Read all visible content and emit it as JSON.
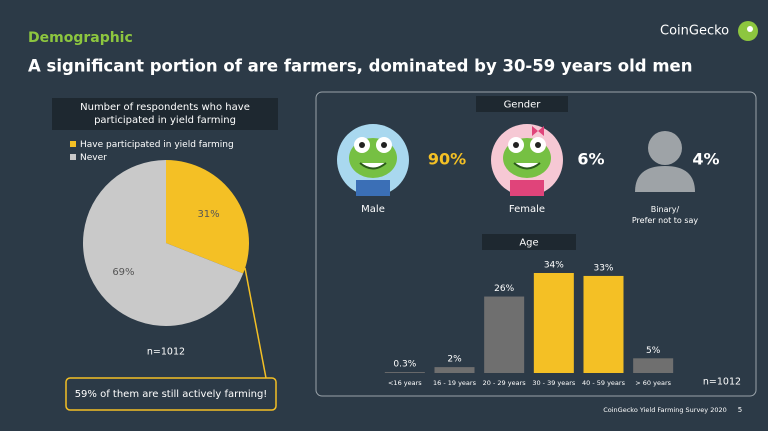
{
  "header": {
    "section": "Demographic",
    "title": "A significant portion of are farmers, dominated by 30-59 years old men",
    "brand": "CoinGecko"
  },
  "chart_data": [
    {
      "type": "pie",
      "title": "Number of respondents who have participated in yield farming",
      "categories": [
        "Have participated in yield farming",
        "Never"
      ],
      "values": [
        31,
        69
      ],
      "value_labels": [
        "31%",
        "69%"
      ],
      "colors": [
        "#f4c025",
        "#c9c9c9"
      ],
      "note": "n=1012",
      "annotation": "59% of them are still actively farming!"
    },
    {
      "type": "bar",
      "title": "Age",
      "categories": [
        "<16 years",
        "16 - 19 years",
        "20 - 29 years",
        "30 - 39 years",
        "40 - 59 years",
        "> 60 years"
      ],
      "values": [
        0.3,
        2,
        26,
        34,
        33,
        5
      ],
      "value_labels": [
        "0.3%",
        "2%",
        "26%",
        "34%",
        "33%",
        "5%"
      ],
      "colors": [
        "#6f6f6f",
        "#6f6f6f",
        "#6f6f6f",
        "#f4c025",
        "#f4c025",
        "#6f6f6f"
      ],
      "note": "n=1012"
    }
  ],
  "gender": {
    "title": "Gender",
    "items": [
      {
        "label": "Male",
        "value": "90%"
      },
      {
        "label": "Female",
        "value": "6%"
      },
      {
        "label": "Binary/\nPrefer not to say",
        "value": "4%"
      }
    ]
  },
  "footer": {
    "source": "CoinGecko Yield Farming Survey 2020",
    "page": "5"
  }
}
